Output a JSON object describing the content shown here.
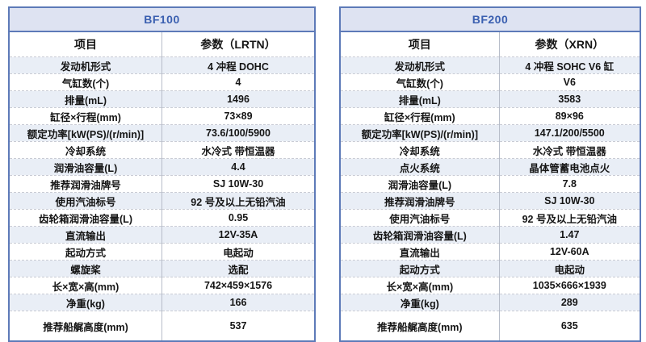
{
  "colors": {
    "outer_border": "#5d7ab8",
    "title_bar_background": "#dee3f2",
    "title_text": "#3a5fb0",
    "row_tint": "#e9eef6",
    "row_separator": "#c9ccd5",
    "column_divider": "#b7bdc9",
    "body_text": "#151515"
  },
  "tables": [
    {
      "id": "bf100",
      "title": "BF100",
      "columns": [
        "项目",
        "参数（LRTN）"
      ],
      "rows": [
        {
          "item": "发动机形式",
          "value": "4 冲程 DOHC"
        },
        {
          "item": "气缸数(个)",
          "value": "4"
        },
        {
          "item": "排量(mL)",
          "value": "1496"
        },
        {
          "item": "缸径×行程(mm)",
          "value": "73×89"
        },
        {
          "item": "额定功率[kW(PS)/(r/min)]",
          "value": "73.6/100/5900"
        },
        {
          "item": "冷却系统",
          "value": "水冷式 带恒温器"
        },
        {
          "item": "润滑油容量(L)",
          "value": "4.4"
        },
        {
          "item": "推荐润滑油牌号",
          "value": "SJ 10W-30"
        },
        {
          "item": "使用汽油标号",
          "value": "92 号及以上无铅汽油"
        },
        {
          "item": "齿轮箱润滑油容量(L)",
          "value": "0.95"
        },
        {
          "item": "直流输出",
          "value": "12V-35A"
        },
        {
          "item": "起动方式",
          "value": "电起动"
        },
        {
          "item": "螺旋桨",
          "value": "选配"
        },
        {
          "item": "长×宽×高(mm)",
          "value": "742×459×1576"
        },
        {
          "item": "净重(kg)",
          "value": "166"
        },
        {
          "item": "推荐船艉高度(mm)",
          "value": "537"
        }
      ]
    },
    {
      "id": "bf200",
      "title": "BF200",
      "columns": [
        "项目",
        "参数（XRN）"
      ],
      "rows": [
        {
          "item": "发动机形式",
          "value": "4 冲程 SOHC V6 缸"
        },
        {
          "item": "气缸数(个)",
          "value": "V6"
        },
        {
          "item": "排量(mL)",
          "value": "3583"
        },
        {
          "item": "缸径×行程(mm)",
          "value": "89×96"
        },
        {
          "item": "额定功率[kW(PS)/(r/min)]",
          "value": "147.1/200/5500"
        },
        {
          "item": "冷却系统",
          "value": "水冷式 带恒温器"
        },
        {
          "item": "点火系统",
          "value": "晶体管蓄电池点火"
        },
        {
          "item": "润滑油容量(L)",
          "value": "7.8"
        },
        {
          "item": "推荐润滑油牌号",
          "value": "SJ 10W-30"
        },
        {
          "item": "使用汽油标号",
          "value": "92 号及以上无铅汽油"
        },
        {
          "item": "齿轮箱润滑油容量(L)",
          "value": "1.47"
        },
        {
          "item": "直流输出",
          "value": "12V-60A"
        },
        {
          "item": "起动方式",
          "value": "电起动"
        },
        {
          "item": "长×宽×高(mm)",
          "value": "1035×666×1939"
        },
        {
          "item": "净重(kg)",
          "value": "289"
        },
        {
          "item": "推荐船艉高度(mm)",
          "value": "635"
        }
      ]
    }
  ]
}
